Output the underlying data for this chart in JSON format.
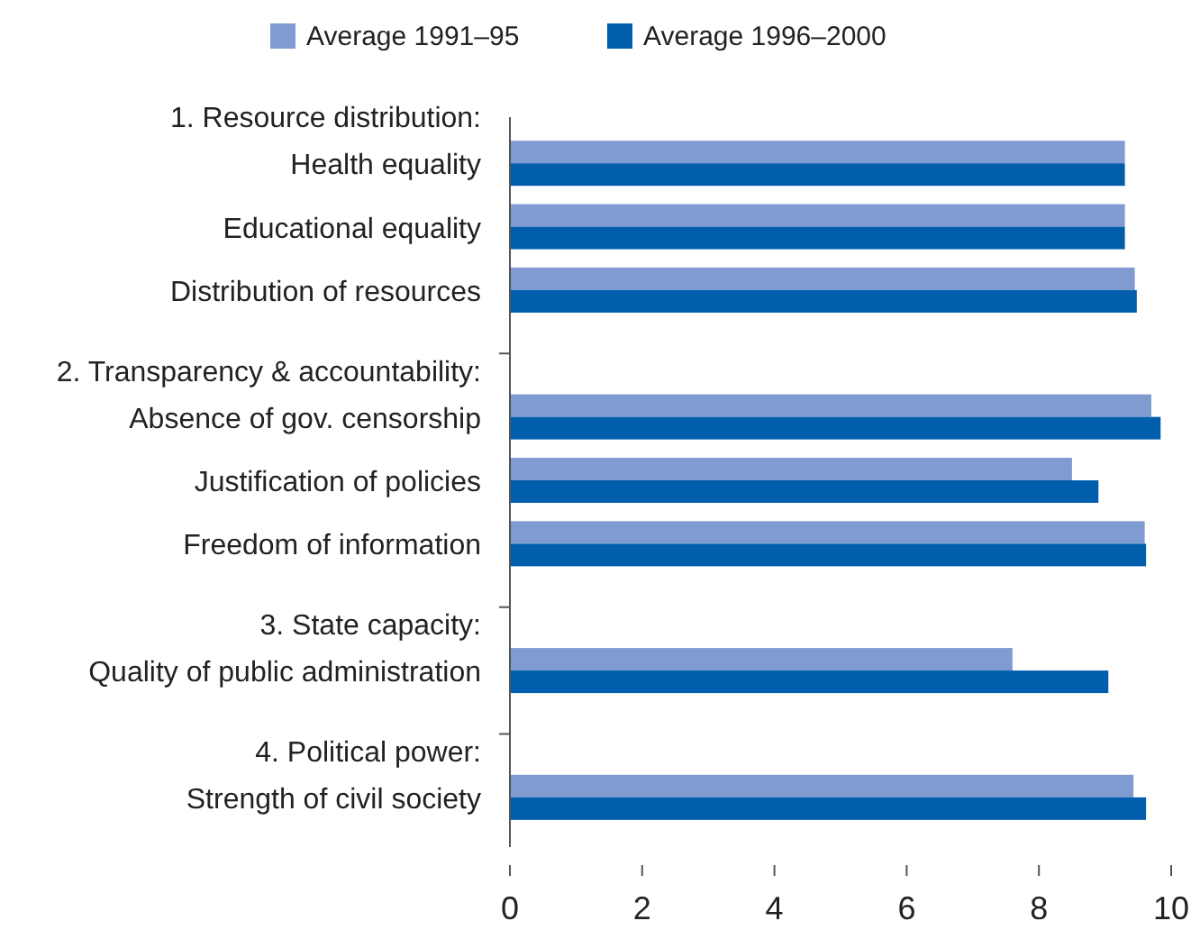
{
  "chart_data": {
    "type": "bar",
    "orientation": "horizontal",
    "categories": [
      "1. Resource distribution:\nHealth equality",
      "Educational equality",
      "Distribution of resources",
      null,
      "2. Transparency & accountability:\nAbsence of gov. censorship",
      "Justification of policies",
      "Freedom of information",
      null,
      "3. State capacity:\nQuality of public administration",
      null,
      "4. Political power:\nStrength of civil society"
    ],
    "series": [
      {
        "name": "Average 1991–95",
        "color": "#7f9bd0",
        "values": [
          9.3,
          9.3,
          9.45,
          null,
          9.7,
          8.5,
          9.6,
          null,
          7.6,
          null,
          9.43
        ]
      },
      {
        "name": "Average 1996–2000",
        "color": "#005eac",
        "values": [
          9.3,
          9.3,
          9.48,
          null,
          9.84,
          8.9,
          9.62,
          null,
          9.05,
          null,
          9.62
        ]
      }
    ],
    "xlim": [
      0,
      10
    ],
    "xticks": [
      0,
      2,
      4,
      6,
      8,
      10
    ],
    "grid": false,
    "legend": "top"
  }
}
